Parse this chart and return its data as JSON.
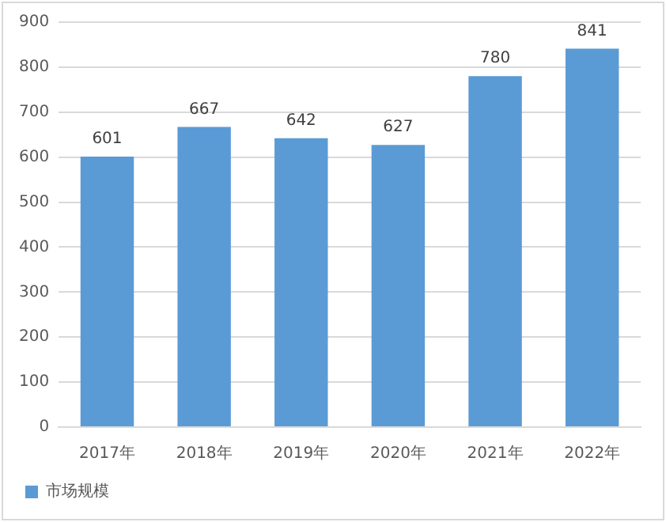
{
  "chart_data": {
    "type": "bar",
    "categories": [
      "2017年",
      "2018年",
      "2019年",
      "2020年",
      "2021年",
      "2022年"
    ],
    "series": [
      {
        "name": "市场规模",
        "color": "#5b9bd5",
        "values": [
          601,
          667,
          642,
          627,
          780,
          841
        ]
      }
    ],
    "ylim": [
      0,
      900
    ],
    "yticks": [
      0,
      100,
      200,
      300,
      400,
      500,
      600,
      700,
      800,
      900
    ],
    "grid": "y",
    "legend": "bottom",
    "data_labels": true
  }
}
